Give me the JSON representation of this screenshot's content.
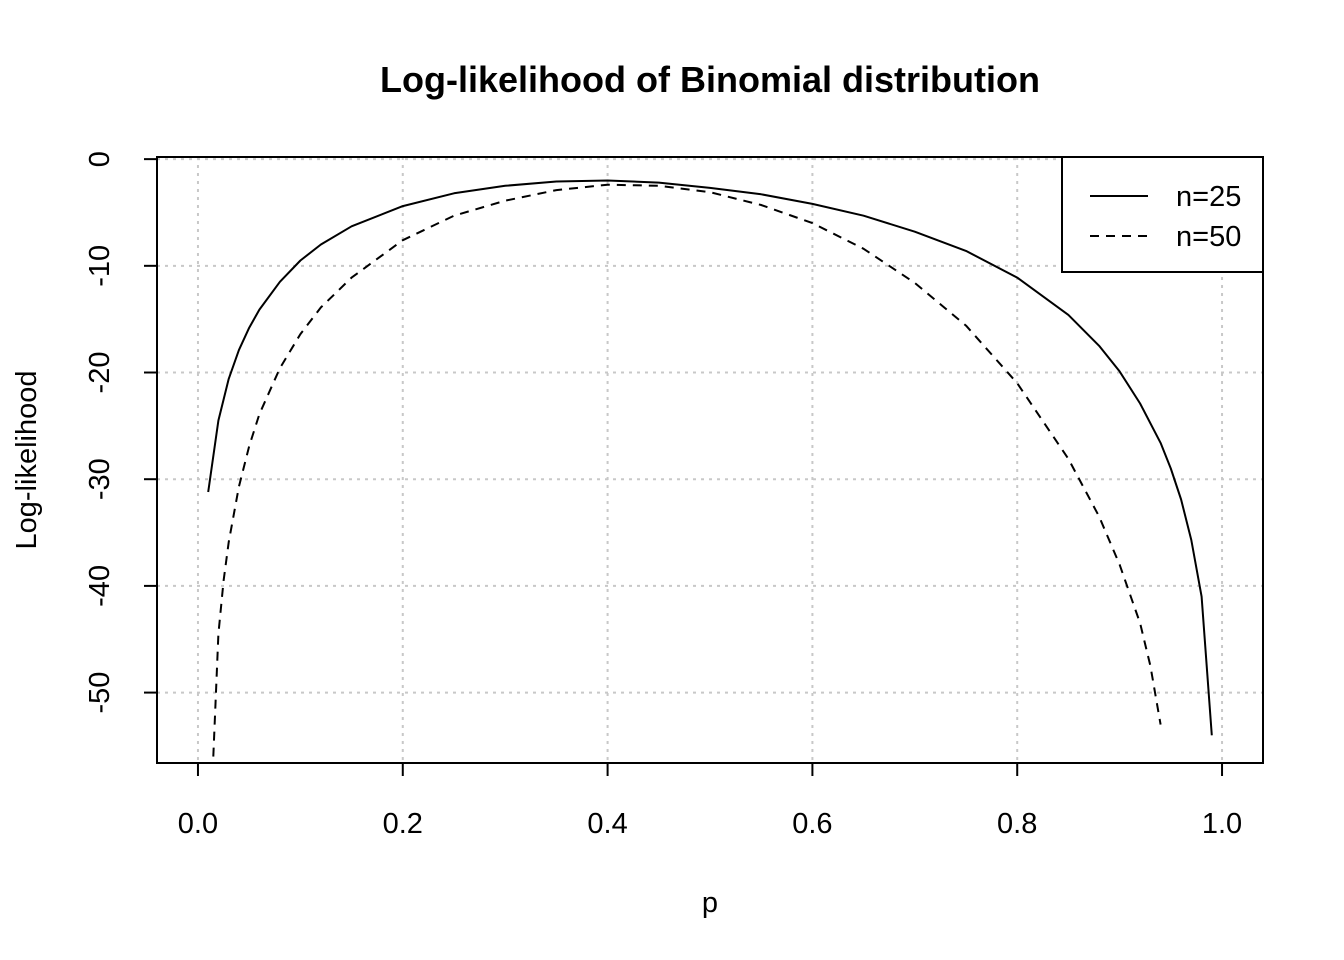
{
  "chart_data": {
    "type": "line",
    "title": "Log-likelihood of Binomial distribution",
    "xlabel": "p",
    "ylabel": "Log-likelihood",
    "xlim": [
      -0.04,
      1.04
    ],
    "ylim": [
      -56.6,
      0.2
    ],
    "x_ticks": [
      "0.0",
      "0.2",
      "0.4",
      "0.6",
      "0.8",
      "1.0"
    ],
    "y_ticks": [
      "0",
      "-10",
      "-20",
      "-30",
      "-40",
      "-50"
    ],
    "grid": true,
    "legend_position": "top-right",
    "series": [
      {
        "name": "n=25",
        "line_style": "solid",
        "x": [
          0.01,
          0.02,
          0.03,
          0.04,
          0.05,
          0.06,
          0.08,
          0.1,
          0.12,
          0.15,
          0.2,
          0.25,
          0.3,
          0.35,
          0.4,
          0.45,
          0.5,
          0.55,
          0.6,
          0.65,
          0.7,
          0.75,
          0.8,
          0.85,
          0.88,
          0.9,
          0.92,
          0.94,
          0.95,
          0.96,
          0.97,
          0.98,
          0.99
        ],
        "y": [
          -31.2,
          -24.5,
          -20.6,
          -17.9,
          -15.8,
          -14.1,
          -11.5,
          -9.5,
          -8.0,
          -6.3,
          -4.4,
          -3.2,
          -2.5,
          -2.1,
          -2.0,
          -2.2,
          -2.7,
          -3.3,
          -4.2,
          -5.3,
          -6.8,
          -8.6,
          -11.1,
          -14.6,
          -17.5,
          -19.9,
          -22.9,
          -26.6,
          -29.0,
          -31.9,
          -35.7,
          -41.0,
          -54.0
        ]
      },
      {
        "name": "n=50",
        "line_style": "dashed",
        "x": [
          0.015,
          0.02,
          0.025,
          0.03,
          0.04,
          0.05,
          0.06,
          0.08,
          0.1,
          0.12,
          0.15,
          0.2,
          0.25,
          0.3,
          0.35,
          0.4,
          0.45,
          0.5,
          0.55,
          0.6,
          0.65,
          0.7,
          0.75,
          0.8,
          0.85,
          0.88,
          0.9,
          0.92,
          0.93,
          0.94
        ],
        "y": [
          -56.0,
          -44.5,
          -39.5,
          -35.9,
          -30.7,
          -26.9,
          -23.9,
          -19.6,
          -16.4,
          -13.9,
          -11.1,
          -7.6,
          -5.3,
          -3.9,
          -2.9,
          -2.4,
          -2.5,
          -3.1,
          -4.3,
          -6.0,
          -8.4,
          -11.6,
          -15.6,
          -21.0,
          -28.1,
          -33.5,
          -38.0,
          -43.5,
          -47.5,
          -53.0
        ]
      }
    ]
  }
}
